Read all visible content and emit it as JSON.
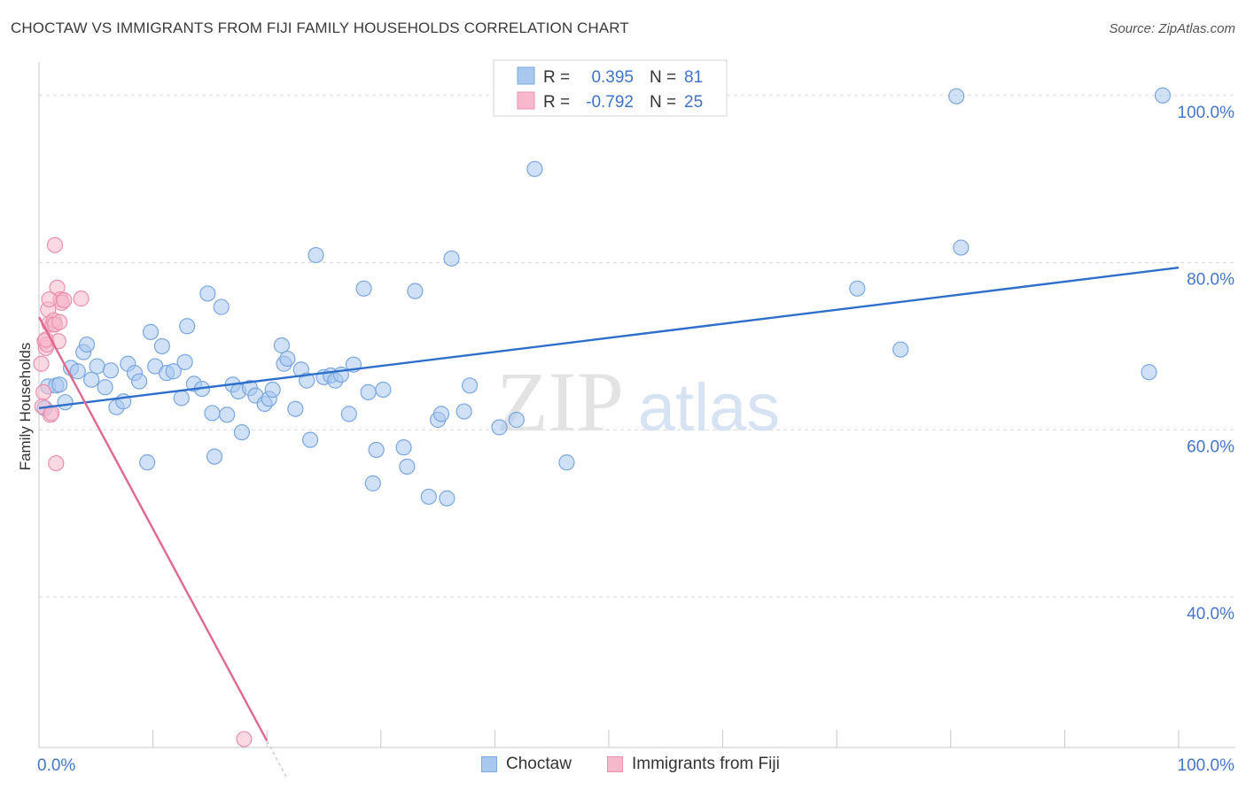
{
  "title": "CHOCTAW VS IMMIGRANTS FROM FIJI FAMILY HOUSEHOLDS CORRELATION CHART",
  "source": "Source: ZipAtlas.com",
  "watermark": {
    "zip": "ZIP",
    "atlas": "atlas"
  },
  "colors": {
    "blue_fill": "#a9c8f0",
    "blue_stroke": "#7aa7e0",
    "blue_line": "#2f6fcc",
    "pink_fill": "#f6b9cc",
    "pink_stroke": "#ec8fad",
    "pink_line": "#e06890",
    "axis_text": "#4477cc",
    "grid": "#d9d9d9"
  },
  "legend": {
    "r_label": "R =",
    "n_label": "N =",
    "rows": [
      {
        "r": "0.395",
        "n": "81"
      },
      {
        "r": "-0.792",
        "n": "25"
      }
    ]
  },
  "chart_data": {
    "type": "scatter",
    "title": "CHOCTAW VS IMMIGRANTS FROM FIJI FAMILY HOUSEHOLDS CORRELATION CHART",
    "xlabel": "",
    "ylabel": "Family Households",
    "xlim": [
      0,
      100
    ],
    "ylim": [
      22,
      104
    ],
    "x_tick_labels": [
      "0.0%",
      "100.0%"
    ],
    "y_ticks": [
      40,
      60,
      80,
      100
    ],
    "y_tick_labels": [
      "40.0%",
      "60.0%",
      "80.0%",
      "100.0%"
    ],
    "series": [
      {
        "name": "Choctaw",
        "color": "blue",
        "trend": {
          "x1": 0,
          "y1": 62.6,
          "x2": 100,
          "y2": 79.4
        },
        "points": [
          [
            0.5,
            62.6
          ],
          [
            0.8,
            65.2
          ],
          [
            1.5,
            65.3
          ],
          [
            1.8,
            65.4
          ],
          [
            2.3,
            63.3
          ],
          [
            2.8,
            67.4
          ],
          [
            3.4,
            67.0
          ],
          [
            3.9,
            69.3
          ],
          [
            4.2,
            70.2
          ],
          [
            4.6,
            66.0
          ],
          [
            5.1,
            67.6
          ],
          [
            5.8,
            65.1
          ],
          [
            6.3,
            67.1
          ],
          [
            6.8,
            62.7
          ],
          [
            7.4,
            63.4
          ],
          [
            7.8,
            67.9
          ],
          [
            8.4,
            66.8
          ],
          [
            8.8,
            65.8
          ],
          [
            9.5,
            56.1
          ],
          [
            9.8,
            71.7
          ],
          [
            10.2,
            67.6
          ],
          [
            10.8,
            70.0
          ],
          [
            11.2,
            66.8
          ],
          [
            11.8,
            67.0
          ],
          [
            12.5,
            63.8
          ],
          [
            12.8,
            68.1
          ],
          [
            13.0,
            72.4
          ],
          [
            13.6,
            65.5
          ],
          [
            14.3,
            64.9
          ],
          [
            14.8,
            76.3
          ],
          [
            15.2,
            62.0
          ],
          [
            15.4,
            56.8
          ],
          [
            16.0,
            74.7
          ],
          [
            16.5,
            61.8
          ],
          [
            17.0,
            65.4
          ],
          [
            17.5,
            64.6
          ],
          [
            17.8,
            59.7
          ],
          [
            18.5,
            65.0
          ],
          [
            19.0,
            64.1
          ],
          [
            19.8,
            63.1
          ],
          [
            20.2,
            63.7
          ],
          [
            20.5,
            64.8
          ],
          [
            21.3,
            70.1
          ],
          [
            21.5,
            67.9
          ],
          [
            21.8,
            68.5
          ],
          [
            22.5,
            62.5
          ],
          [
            23.0,
            67.2
          ],
          [
            23.5,
            65.9
          ],
          [
            23.8,
            58.8
          ],
          [
            24.3,
            80.9
          ],
          [
            25.0,
            66.3
          ],
          [
            25.6,
            66.5
          ],
          [
            26.0,
            65.9
          ],
          [
            26.5,
            66.6
          ],
          [
            27.2,
            61.9
          ],
          [
            27.6,
            67.8
          ],
          [
            28.5,
            76.9
          ],
          [
            28.9,
            64.5
          ],
          [
            29.3,
            53.6
          ],
          [
            29.6,
            57.6
          ],
          [
            30.2,
            64.8
          ],
          [
            32.0,
            57.9
          ],
          [
            32.3,
            55.6
          ],
          [
            33.0,
            76.6
          ],
          [
            34.2,
            52.0
          ],
          [
            35.0,
            61.2
          ],
          [
            35.3,
            61.9
          ],
          [
            35.8,
            51.8
          ],
          [
            36.2,
            80.5
          ],
          [
            37.3,
            62.2
          ],
          [
            37.8,
            65.3
          ],
          [
            40.4,
            60.3
          ],
          [
            41.9,
            61.2
          ],
          [
            43.5,
            91.2
          ],
          [
            46.3,
            56.1
          ],
          [
            71.8,
            76.9
          ],
          [
            75.6,
            69.6
          ],
          [
            80.5,
            99.9
          ],
          [
            80.9,
            81.8
          ],
          [
            97.4,
            66.9
          ],
          [
            98.6,
            100.0
          ]
        ]
      },
      {
        "name": "Immigrants from Fiji",
        "color": "pink",
        "trend": {
          "x1": 0,
          "y1": 73.5,
          "x2": 20.0,
          "y2": 22.8,
          "dash_to_x": 21.8
        },
        "points": [
          [
            0.2,
            67.9
          ],
          [
            0.3,
            62.8
          ],
          [
            0.4,
            64.5
          ],
          [
            0.5,
            70.6
          ],
          [
            0.6,
            69.8
          ],
          [
            0.7,
            70.2
          ],
          [
            0.8,
            74.4
          ],
          [
            0.9,
            72.7
          ],
          [
            1.0,
            61.8
          ],
          [
            1.1,
            62.0
          ],
          [
            1.2,
            72.6
          ],
          [
            1.3,
            73.1
          ],
          [
            1.4,
            72.6
          ],
          [
            1.5,
            56.0
          ],
          [
            1.6,
            77.0
          ],
          [
            1.7,
            70.6
          ],
          [
            1.9,
            75.6
          ],
          [
            2.0,
            75.2
          ],
          [
            2.2,
            75.5
          ],
          [
            3.7,
            75.7
          ],
          [
            1.4,
            82.1
          ],
          [
            0.9,
            75.6
          ],
          [
            1.8,
            72.9
          ],
          [
            0.6,
            70.8
          ],
          [
            18.0,
            23.0
          ]
        ]
      }
    ]
  },
  "bottom_legend": [
    {
      "label": "Choctaw"
    },
    {
      "label": "Immigrants from Fiji"
    }
  ]
}
